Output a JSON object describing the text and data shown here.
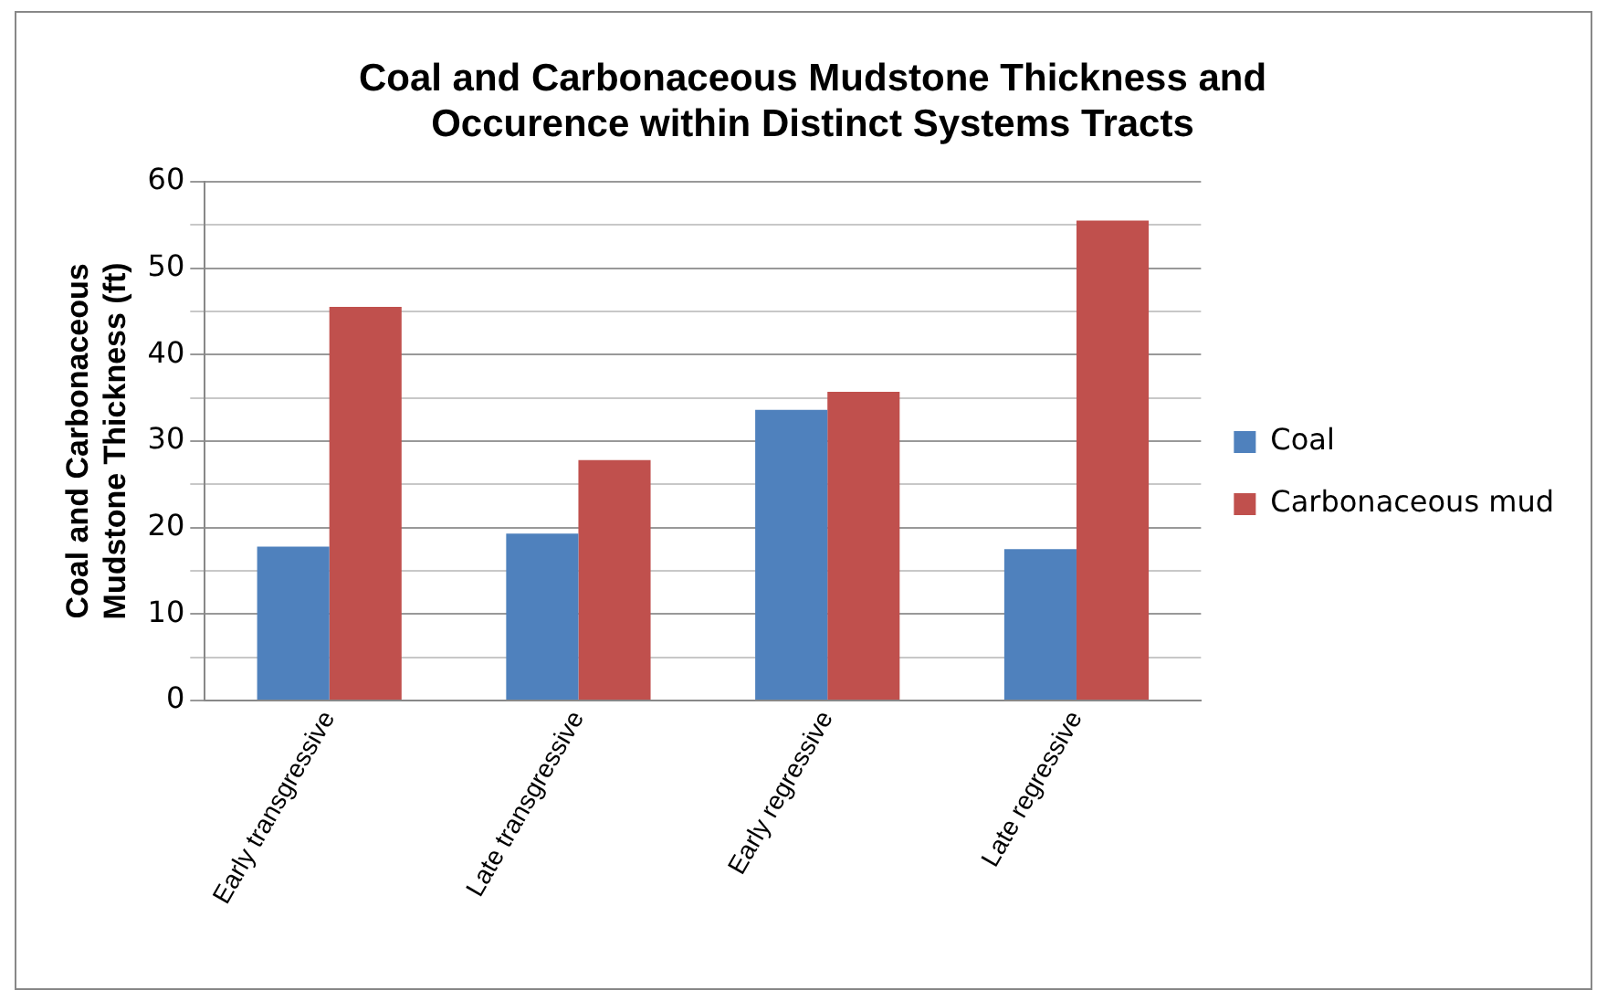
{
  "chart_data": {
    "type": "bar",
    "title": "Coal and Carbonaceous Mudstone Thickness and Occurence within Distinct Systems Tracts",
    "ylabel": "Coal and Carbonaceous Mudstone Thickness (ft)",
    "categories": [
      "Early transgressive",
      "Late transgressive",
      "Early regressive",
      "Late regressive"
    ],
    "series": [
      {
        "name": "Coal",
        "color": "#4f81bd",
        "values": [
          17.8,
          19.3,
          33.6,
          17.5
        ]
      },
      {
        "name": "Carbonaceous mud",
        "color": "#c0504d",
        "values": [
          45.5,
          27.8,
          35.7,
          55.5
        ]
      }
    ],
    "ylim": [
      0,
      60
    ],
    "yticks": [
      0,
      {
        "value": 5,
        "label": null
      },
      10,
      {
        "value": 15,
        "label": null
      },
      20,
      {
        "value": 25,
        "label": null
      },
      30,
      {
        "value": 35,
        "label": null
      },
      40,
      {
        "value": 45,
        "label": null
      },
      50,
      {
        "value": 55,
        "label": null
      },
      60
    ],
    "grid": "y",
    "legend": "right"
  }
}
